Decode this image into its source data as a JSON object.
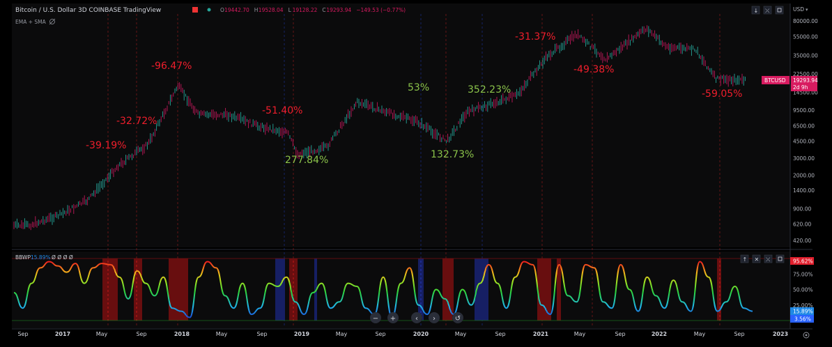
{
  "header": {
    "title": "Bitcoin / U.S. Dollar  3D  COINBASE  TradingView",
    "ohlc": [
      {
        "k": "O",
        "v": "19442.70"
      },
      {
        "k": "H",
        "v": "19528.04"
      },
      {
        "k": "L",
        "v": "19128.22"
      },
      {
        "k": "C",
        "v": "19293.94"
      },
      {
        "k": "",
        "v": "−149.53 (−0.77%)"
      }
    ],
    "overlay": "EMA + SMA",
    "currency": "USD",
    "indicator_label": "BBWP",
    "indicator_value": "15.89%",
    "indicator_zeros": "Ø  Ø  Ø  Ø"
  },
  "price_badge": {
    "symbol": "BTCUSD",
    "price": "19293.94",
    "countdown": "2d 9h"
  },
  "bbwp_badges": {
    "top": "95.62%",
    "value": "15.89%",
    "low": "3.56%"
  },
  "colors": {
    "up": "#26a69a",
    "down": "#d81b60",
    "annotation_loss": "#f01e2c",
    "annotation_gain": "#8bc34a",
    "bg": "#000000",
    "panel": "#0d0d0d"
  },
  "toolbar": [
    "−",
    "+",
    "‹",
    "›",
    "↺"
  ],
  "chart_data": [
    {
      "type": "line",
      "scale": "log",
      "ylim": [
        420,
        80000
      ],
      "yticks": [
        "80000.00",
        "55000.00",
        "35000.00",
        "22500.00",
        "14500.00",
        "9500.00",
        "6500.00",
        "4500.00",
        "3000.00",
        "2000.00",
        "1400.00",
        "900.00",
        "620.00",
        "420.00"
      ],
      "xticks": [
        "Sep",
        "2017",
        "May",
        "Sep",
        "2018",
        "May",
        "Sep",
        "2019",
        "May",
        "Sep",
        "2020",
        "May",
        "Sep",
        "2021",
        "May",
        "Sep",
        "2022",
        "May",
        "Sep",
        "2023"
      ],
      "series": [
        {
          "x": [
            "2016-09",
            "2016-12",
            "2017-03",
            "2017-06",
            "2017-09",
            "2017-12",
            "2018-02",
            "2018-05",
            "2018-08",
            "2018-11",
            "2018-12",
            "2019-03",
            "2019-06",
            "2019-09",
            "2019-12",
            "2020-03",
            "2020-05",
            "2020-08",
            "2020-10",
            "2021-01",
            "2021-04",
            "2021-07",
            "2021-11",
            "2022-01",
            "2022-04",
            "2022-06",
            "2022-09"
          ],
          "y": [
            600,
            760,
            1100,
            2500,
            4200,
            17000,
            8500,
            8500,
            6500,
            5500,
            3300,
            3900,
            11500,
            9000,
            7200,
            4500,
            9000,
            11500,
            13500,
            34000,
            58000,
            32000,
            67000,
            43000,
            40000,
            20000,
            19300
          ]
        }
      ],
      "annotations": [
        {
          "text": "-39.19%",
          "kind": "loss",
          "x": "2017-03"
        },
        {
          "text": "-32.72%",
          "kind": "loss",
          "x": "2017-06"
        },
        {
          "text": "-96.47%",
          "kind": "loss",
          "x": "2017-12"
        },
        {
          "text": "-51.40%",
          "kind": "loss",
          "x": "2018-11"
        },
        {
          "text": "277.84%",
          "kind": "gain",
          "x": "2018-12"
        },
        {
          "text": "53%",
          "kind": "gain",
          "x": "2019-10"
        },
        {
          "text": "132.73%",
          "kind": "gain",
          "x": "2020-03"
        },
        {
          "text": "352.23%",
          "kind": "gain",
          "x": "2020-08"
        },
        {
          "text": "-31.37%",
          "kind": "loss",
          "x": "2021-01"
        },
        {
          "text": "-49.38%",
          "kind": "loss",
          "x": "2021-05"
        },
        {
          "text": "-59.05%",
          "kind": "loss",
          "x": "2022-06"
        }
      ]
    },
    {
      "type": "line",
      "name": "BBWP",
      "ylim": [
        0,
        100
      ],
      "yticks": [
        "95.62%",
        "75.00%",
        "50.00%",
        "25.00%"
      ],
      "series": [
        {
          "name": "BBWP",
          "values": [
            45,
            20,
            60,
            85,
            95,
            88,
            78,
            92,
            60,
            85,
            92,
            90,
            70,
            35,
            80,
            60,
            40,
            70,
            20,
            15,
            5,
            70,
            95,
            85,
            40,
            20,
            60,
            10,
            20,
            60,
            55,
            70,
            30,
            10,
            45,
            60,
            20,
            30,
            60,
            55,
            20,
            10,
            70,
            5,
            60,
            85,
            25,
            10,
            50,
            35,
            10,
            50,
            25,
            60,
            90,
            60,
            20,
            70,
            95,
            90,
            25,
            10,
            90,
            40,
            30,
            90,
            85,
            30,
            20,
            90,
            50,
            15,
            70,
            40,
            20,
            65,
            30,
            15,
            95,
            70,
            15,
            30,
            55,
            20,
            15
          ]
        }
      ]
    }
  ]
}
